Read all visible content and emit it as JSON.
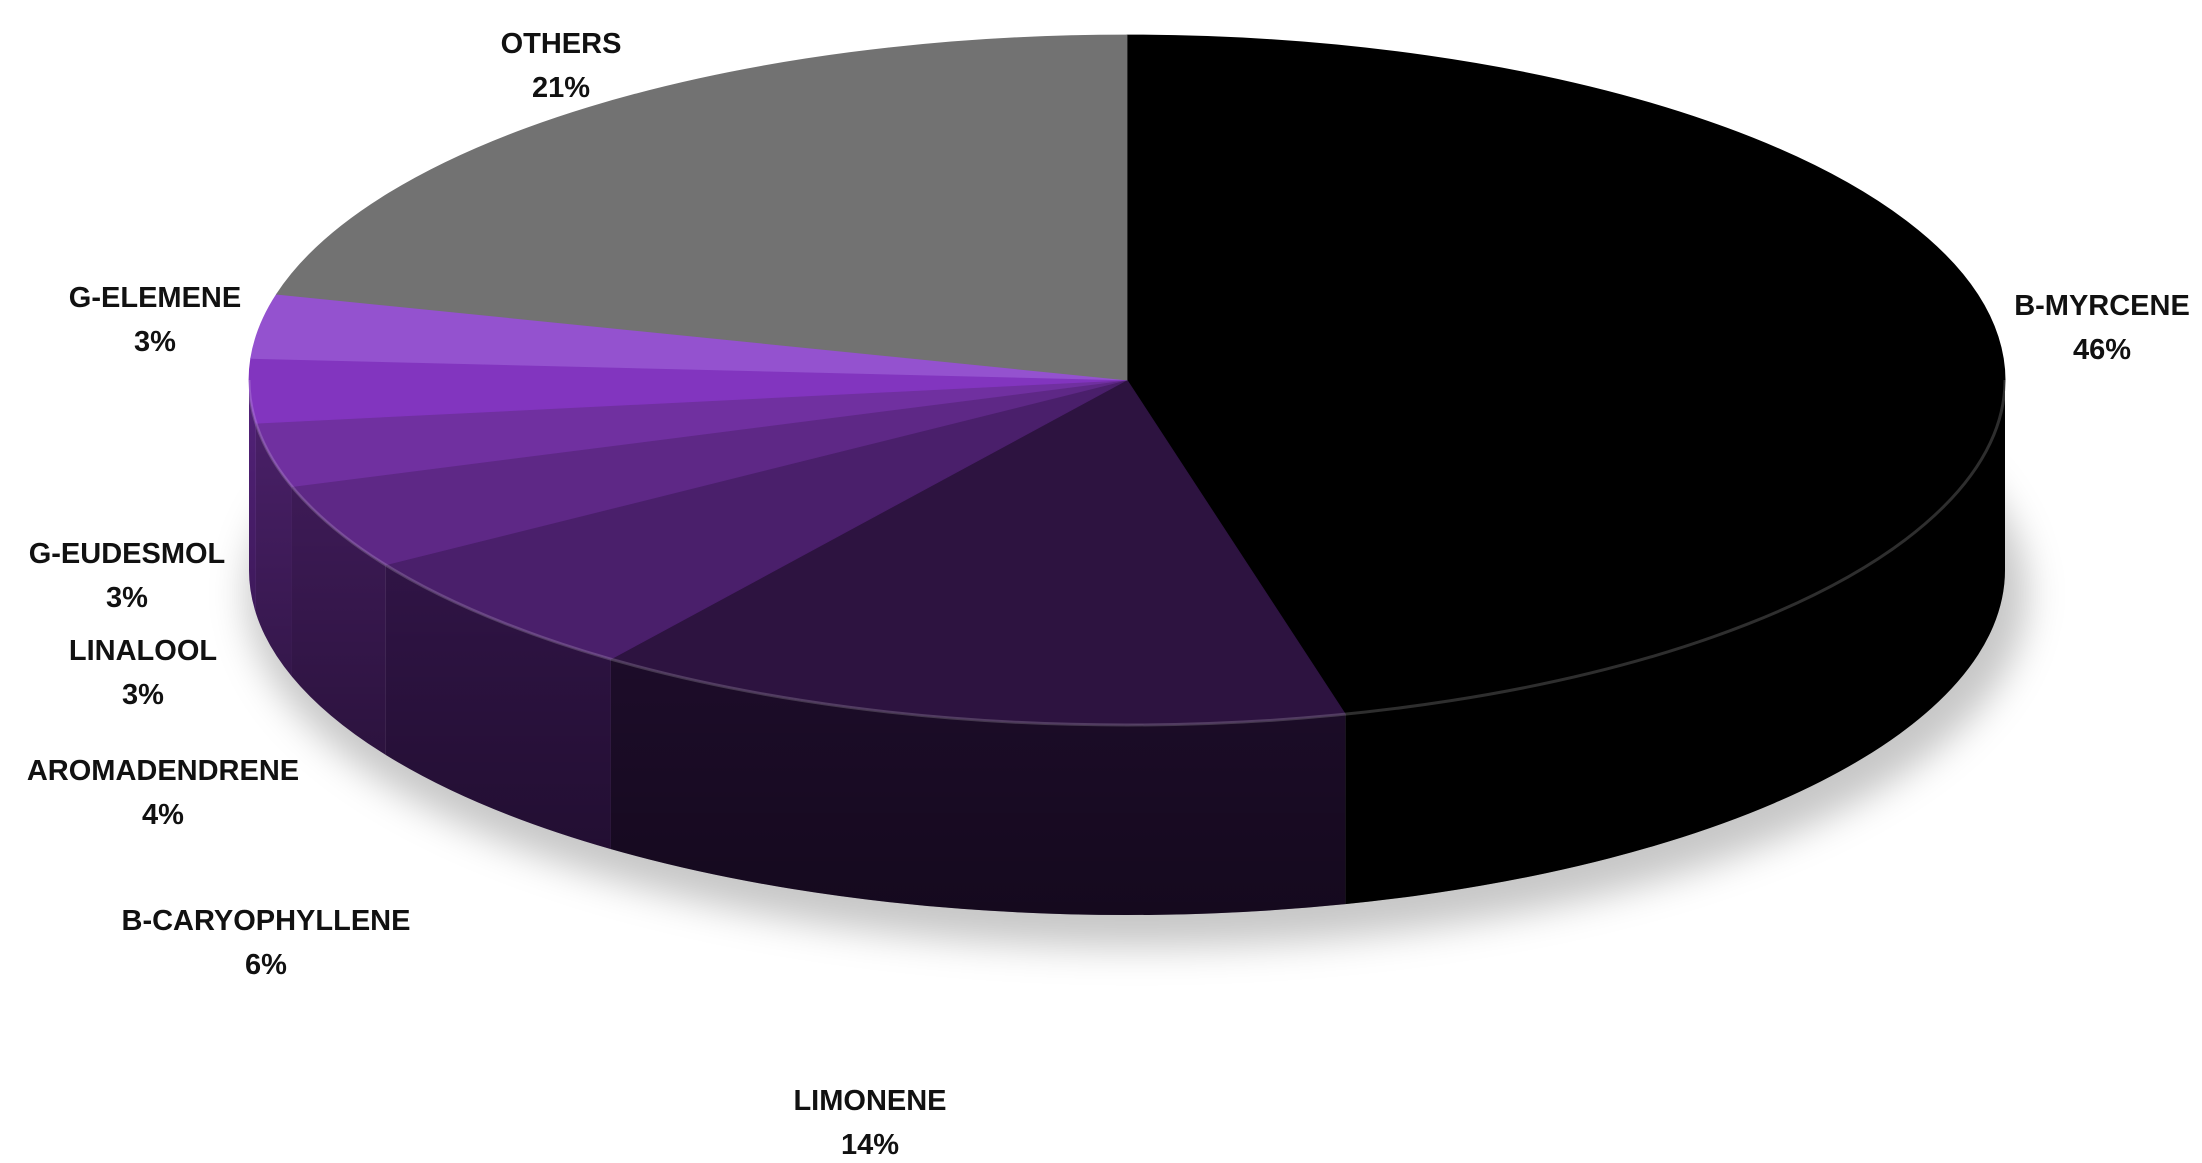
{
  "chart_data": {
    "type": "pie",
    "title": "",
    "start_angle_deg": 0,
    "direction": "clockwise",
    "slices": [
      {
        "label": "B-MYRCENE",
        "percent_label": "46%",
        "value": 46,
        "color": "#000000",
        "label_side": "right"
      },
      {
        "label": "LIMONENE",
        "percent_label": "14%",
        "value": 14,
        "color": "#2d1340",
        "label_side": "bottom"
      },
      {
        "label": "B-CARYOPHYLLENE",
        "percent_label": "6%",
        "value": 6,
        "color": "#4a1f6b",
        "label_side": "left"
      },
      {
        "label": "AROMADENDRENE",
        "percent_label": "4%",
        "value": 4,
        "color": "#5e2886",
        "label_side": "left"
      },
      {
        "label": "LINALOOL",
        "percent_label": "3%",
        "value": 3,
        "color": "#7030a0",
        "label_side": "left"
      },
      {
        "label": "G-EUDESMOL",
        "percent_label": "3%",
        "value": 3,
        "color": "#8235bf",
        "label_side": "left"
      },
      {
        "label": "G-ELEMENE",
        "percent_label": "3%",
        "value": 3,
        "color": "#9452cf",
        "label_side": "left"
      },
      {
        "label": "OTHERS",
        "percent_label": "21%",
        "value": 21,
        "color": "#727272",
        "label_side": "top"
      }
    ]
  }
}
